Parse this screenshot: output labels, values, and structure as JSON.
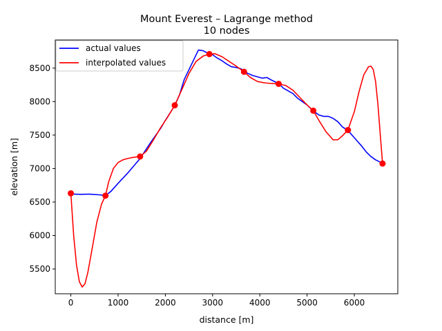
{
  "chart_data": {
    "type": "line",
    "title": "Mount Everest – Lagrange method",
    "subtitle": "10 nodes",
    "xlabel": "distance [m]",
    "ylabel": "elevation [m]",
    "xlim": [
      -330,
      6920
    ],
    "ylim": [
      5130,
      8920
    ],
    "xticks": [
      0,
      1000,
      2000,
      3000,
      4000,
      5000,
      6000
    ],
    "yticks": [
      5500,
      6000,
      6500,
      7000,
      7500,
      8000,
      8500
    ],
    "grid": false,
    "legend_position": "top-left",
    "series": [
      {
        "name": "actual values",
        "color": "#0000ff",
        "x": [
          0,
          200,
          400,
          600,
          733,
          850,
          1000,
          1200,
          1466,
          1700,
          1900,
          2000,
          2199,
          2300,
          2400,
          2550,
          2700,
          2800,
          2932,
          3000,
          3100,
          3200,
          3300,
          3400,
          3500,
          3600,
          3665,
          3750,
          3850,
          3950,
          4050,
          4150,
          4250,
          4398,
          4500,
          4600,
          4700,
          4800,
          4900,
          5000,
          5131,
          5250,
          5350,
          5450,
          5550,
          5650,
          5750,
          5864,
          5950,
          6050,
          6150,
          6250,
          6350,
          6450,
          6597
        ],
        "y": [
          6620,
          6615,
          6618,
          6608,
          6598,
          6660,
          6780,
          6930,
          7150,
          7400,
          7600,
          7720,
          7940,
          8100,
          8330,
          8550,
          8770,
          8760,
          8710,
          8700,
          8650,
          8610,
          8560,
          8520,
          8510,
          8490,
          8450,
          8420,
          8390,
          8370,
          8350,
          8360,
          8320,
          8270,
          8200,
          8160,
          8120,
          8050,
          8000,
          7950,
          7860,
          7800,
          7780,
          7780,
          7750,
          7700,
          7620,
          7570,
          7500,
          7420,
          7340,
          7250,
          7180,
          7130,
          7080
        ]
      },
      {
        "name": "interpolated values",
        "color": "#ff0000",
        "nodes_x": [
          0,
          733,
          1466,
          2199,
          2932,
          3665,
          4398,
          5131,
          5864,
          6597
        ],
        "nodes_y": [
          6630,
          6595,
          7180,
          7945,
          8710,
          8445,
          8265,
          7865,
          7575,
          7075
        ],
        "x": [
          0,
          60,
          120,
          180,
          240,
          300,
          360,
          450,
          550,
          650,
          733,
          800,
          900,
          1000,
          1100,
          1200,
          1300,
          1400,
          1466,
          1600,
          1750,
          1900,
          2050,
          2199,
          2350,
          2500,
          2650,
          2800,
          2932,
          3050,
          3200,
          3350,
          3500,
          3665,
          3800,
          3950,
          4100,
          4250,
          4398,
          4550,
          4700,
          4850,
          5000,
          5131,
          5250,
          5400,
          5550,
          5650,
          5750,
          5864,
          6000,
          6100,
          6200,
          6300,
          6350,
          6400,
          6450,
          6500,
          6550,
          6597
        ],
        "y": [
          6630,
          6000,
          5560,
          5310,
          5230,
          5280,
          5450,
          5800,
          6200,
          6470,
          6595,
          6800,
          7000,
          7090,
          7130,
          7150,
          7165,
          7175,
          7180,
          7260,
          7430,
          7610,
          7770,
          7945,
          8180,
          8420,
          8600,
          8680,
          8710,
          8715,
          8670,
          8600,
          8530,
          8445,
          8360,
          8300,
          8280,
          8270,
          8265,
          8240,
          8170,
          8060,
          7950,
          7865,
          7720,
          7550,
          7430,
          7430,
          7490,
          7575,
          7850,
          8150,
          8400,
          8520,
          8530,
          8480,
          8300,
          7950,
          7500,
          7075
        ]
      }
    ]
  }
}
